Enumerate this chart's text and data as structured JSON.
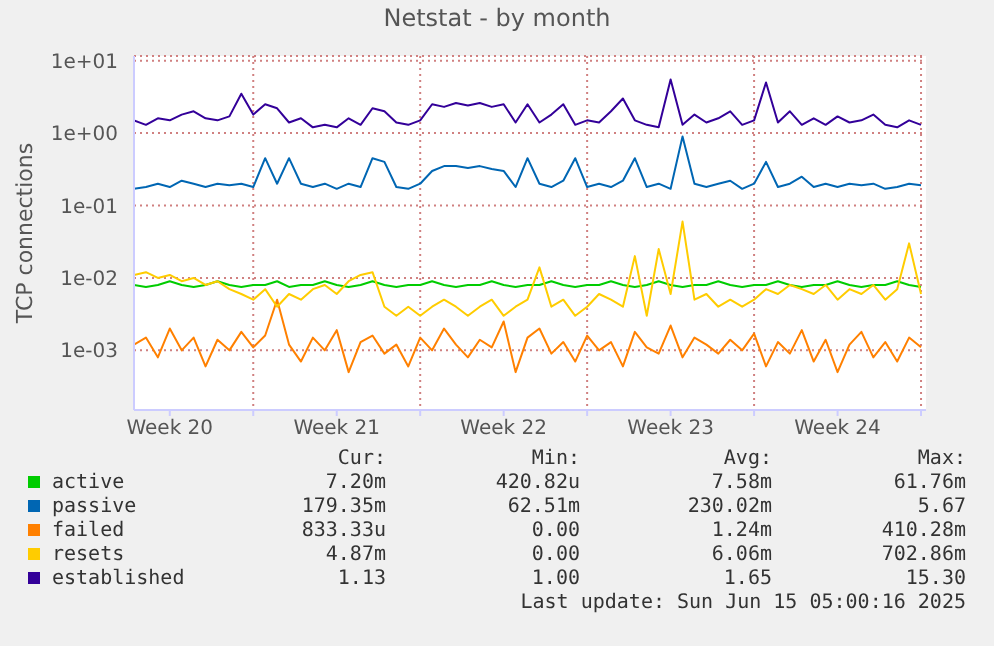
{
  "chart_data": {
    "type": "line",
    "title": "Netstat - by month",
    "ylabel": "TCP connections",
    "log": "y",
    "grid": true,
    "legend": "bottom",
    "ylim": [
      0.00015,
      11.6
    ],
    "yticks": [
      {
        "value": 0.001,
        "label": "1e-03"
      },
      {
        "value": 0.01,
        "label": "1e-02"
      },
      {
        "value": 0.1,
        "label": "1e-01"
      },
      {
        "value": 1,
        "label": "1e+00"
      },
      {
        "value": 10,
        "label": "1e+01"
      }
    ],
    "xlim": [
      "2025-05-13T00:00",
      "2025-06-15T05:00"
    ],
    "xticks": [
      {
        "value": "2025-05-14T12:00",
        "label": "Week 20"
      },
      {
        "value": "2025-05-18T00:00",
        "label": null
      },
      {
        "value": "2025-05-21T12:00",
        "label": "Week 21"
      },
      {
        "value": "2025-05-25T00:00",
        "label": null
      },
      {
        "value": "2025-05-28T12:00",
        "label": "Week 22"
      },
      {
        "value": "2025-06-01T00:00",
        "label": null
      },
      {
        "value": "2025-06-04T12:00",
        "label": "Week 23"
      },
      {
        "value": "2025-06-08T00:00",
        "label": null
      },
      {
        "value": "2025-06-11T12:00",
        "label": "Week 24"
      },
      {
        "value": "2025-06-15T00:00",
        "label": null
      }
    ],
    "x": [
      "2025-05-13T00:00",
      "2025-05-13T12:00",
      "2025-05-14T00:00",
      "2025-05-14T12:00",
      "2025-05-15T00:00",
      "2025-05-15T12:00",
      "2025-05-16T00:00",
      "2025-05-16T12:00",
      "2025-05-17T00:00",
      "2025-05-17T12:00",
      "2025-05-18T00:00",
      "2025-05-18T12:00",
      "2025-05-19T00:00",
      "2025-05-19T12:00",
      "2025-05-20T00:00",
      "2025-05-20T12:00",
      "2025-05-21T00:00",
      "2025-05-21T12:00",
      "2025-05-22T00:00",
      "2025-05-22T12:00",
      "2025-05-23T00:00",
      "2025-05-23T12:00",
      "2025-05-24T00:00",
      "2025-05-24T12:00",
      "2025-05-25T00:00",
      "2025-05-25T12:00",
      "2025-05-26T00:00",
      "2025-05-26T12:00",
      "2025-05-27T00:00",
      "2025-05-27T12:00",
      "2025-05-28T00:00",
      "2025-05-28T12:00",
      "2025-05-29T00:00",
      "2025-05-29T12:00",
      "2025-05-30T00:00",
      "2025-05-30T12:00",
      "2025-05-31T00:00",
      "2025-05-31T12:00",
      "2025-06-01T00:00",
      "2025-06-01T12:00",
      "2025-06-02T00:00",
      "2025-06-02T12:00",
      "2025-06-03T00:00",
      "2025-06-03T12:00",
      "2025-06-04T00:00",
      "2025-06-04T12:00",
      "2025-06-05T00:00",
      "2025-06-05T12:00",
      "2025-06-06T00:00",
      "2025-06-06T12:00",
      "2025-06-07T00:00",
      "2025-06-07T12:00",
      "2025-06-08T00:00",
      "2025-06-08T12:00",
      "2025-06-09T00:00",
      "2025-06-09T12:00",
      "2025-06-10T00:00",
      "2025-06-10T12:00",
      "2025-06-11T00:00",
      "2025-06-11T12:00",
      "2025-06-12T00:00",
      "2025-06-12T12:00",
      "2025-06-13T00:00",
      "2025-06-13T12:00",
      "2025-06-14T00:00",
      "2025-06-14T12:00",
      "2025-06-15T00:00"
    ],
    "series": [
      {
        "name": "active",
        "color": "#00cc00",
        "values": [
          0.008,
          0.0075,
          0.008,
          0.009,
          0.008,
          0.0075,
          0.008,
          0.009,
          0.008,
          0.0075,
          0.008,
          0.008,
          0.009,
          0.0075,
          0.008,
          0.008,
          0.009,
          0.008,
          0.0075,
          0.008,
          0.009,
          0.008,
          0.0075,
          0.008,
          0.008,
          0.009,
          0.008,
          0.0075,
          0.008,
          0.008,
          0.009,
          0.008,
          0.0075,
          0.008,
          0.008,
          0.009,
          0.008,
          0.0075,
          0.008,
          0.008,
          0.009,
          0.008,
          0.0075,
          0.008,
          0.009,
          0.008,
          0.0075,
          0.008,
          0.008,
          0.009,
          0.008,
          0.0075,
          0.008,
          0.008,
          0.009,
          0.008,
          0.0075,
          0.008,
          0.008,
          0.009,
          0.008,
          0.0075,
          0.008,
          0.008,
          0.009,
          0.008,
          0.0075
        ]
      },
      {
        "name": "passive",
        "color": "#0066b3",
        "values": [
          0.17,
          0.18,
          0.2,
          0.18,
          0.22,
          0.2,
          0.18,
          0.2,
          0.19,
          0.2,
          0.18,
          0.45,
          0.2,
          0.45,
          0.2,
          0.18,
          0.2,
          0.17,
          0.2,
          0.18,
          0.45,
          0.4,
          0.18,
          0.17,
          0.2,
          0.3,
          0.35,
          0.35,
          0.33,
          0.35,
          0.32,
          0.3,
          0.18,
          0.45,
          0.2,
          0.18,
          0.22,
          0.45,
          0.18,
          0.2,
          0.18,
          0.22,
          0.45,
          0.18,
          0.2,
          0.17,
          0.9,
          0.2,
          0.18,
          0.2,
          0.22,
          0.17,
          0.2,
          0.4,
          0.18,
          0.2,
          0.25,
          0.18,
          0.2,
          0.18,
          0.2,
          0.19,
          0.2,
          0.17,
          0.18,
          0.2,
          0.19
        ]
      },
      {
        "name": "failed",
        "color": "#ff8000",
        "values": [
          0.0012,
          0.0015,
          0.0008,
          0.002,
          0.001,
          0.0015,
          0.0006,
          0.0014,
          0.001,
          0.0018,
          0.0011,
          0.0016,
          0.005,
          0.0012,
          0.0007,
          0.0015,
          0.001,
          0.0019,
          0.0005,
          0.0013,
          0.0016,
          0.0009,
          0.0012,
          0.0006,
          0.0015,
          0.001,
          0.002,
          0.0012,
          0.0008,
          0.0014,
          0.0011,
          0.0025,
          0.0005,
          0.0015,
          0.002,
          0.0009,
          0.0013,
          0.0007,
          0.0016,
          0.001,
          0.0013,
          0.0006,
          0.0018,
          0.0011,
          0.0009,
          0.0022,
          0.0008,
          0.0015,
          0.0012,
          0.0009,
          0.0014,
          0.001,
          0.0017,
          0.0006,
          0.0013,
          0.0009,
          0.0019,
          0.0007,
          0.0014,
          0.0005,
          0.0012,
          0.0018,
          0.0008,
          0.0013,
          0.0007,
          0.0015,
          0.0011
        ]
      },
      {
        "name": "resets",
        "color": "#ffcc00",
        "values": [
          0.011,
          0.012,
          0.01,
          0.011,
          0.009,
          0.01,
          0.008,
          0.009,
          0.007,
          0.006,
          0.005,
          0.007,
          0.004,
          0.006,
          0.005,
          0.007,
          0.008,
          0.006,
          0.009,
          0.011,
          0.012,
          0.004,
          0.003,
          0.004,
          0.003,
          0.004,
          0.005,
          0.004,
          0.003,
          0.004,
          0.005,
          0.003,
          0.004,
          0.005,
          0.014,
          0.004,
          0.005,
          0.003,
          0.004,
          0.006,
          0.005,
          0.004,
          0.02,
          0.003,
          0.025,
          0.006,
          0.06,
          0.005,
          0.006,
          0.004,
          0.005,
          0.004,
          0.005,
          0.007,
          0.006,
          0.008,
          0.007,
          0.006,
          0.008,
          0.005,
          0.007,
          0.006,
          0.008,
          0.005,
          0.007,
          0.03,
          0.006
        ]
      },
      {
        "name": "established",
        "color": "#330099",
        "values": [
          1.5,
          1.3,
          1.6,
          1.5,
          1.8,
          2.0,
          1.6,
          1.5,
          1.7,
          3.5,
          1.8,
          2.5,
          2.2,
          1.4,
          1.6,
          1.2,
          1.3,
          1.2,
          1.6,
          1.3,
          2.2,
          2.0,
          1.4,
          1.3,
          1.5,
          2.5,
          2.3,
          2.6,
          2.4,
          2.6,
          2.3,
          2.5,
          1.4,
          2.5,
          1.4,
          1.8,
          2.5,
          1.3,
          1.5,
          1.4,
          2.0,
          3.0,
          1.5,
          1.3,
          1.2,
          5.5,
          1.3,
          1.8,
          1.4,
          1.6,
          2.0,
          1.3,
          1.5,
          5.0,
          1.4,
          2.0,
          1.3,
          1.6,
          1.3,
          1.7,
          1.4,
          1.5,
          1.8,
          1.3,
          1.2,
          1.5,
          1.3
        ]
      }
    ],
    "annotations": [
      "Cur:",
      "Min:",
      "Avg:",
      "Max:",
      "7.20m",
      "420.82u",
      "7.58m",
      "61.76m",
      "179.35m",
      "62.51m",
      "230.02m",
      "5.67",
      "833.33u",
      "0.00",
      "1.24m",
      "410.28m",
      "4.87m",
      "0.00",
      "6.06m",
      "702.86m",
      "1.13",
      "1.00",
      "1.65",
      "15.30",
      "Last update: Sun Jun 15 05:00:16 2025"
    ]
  }
}
